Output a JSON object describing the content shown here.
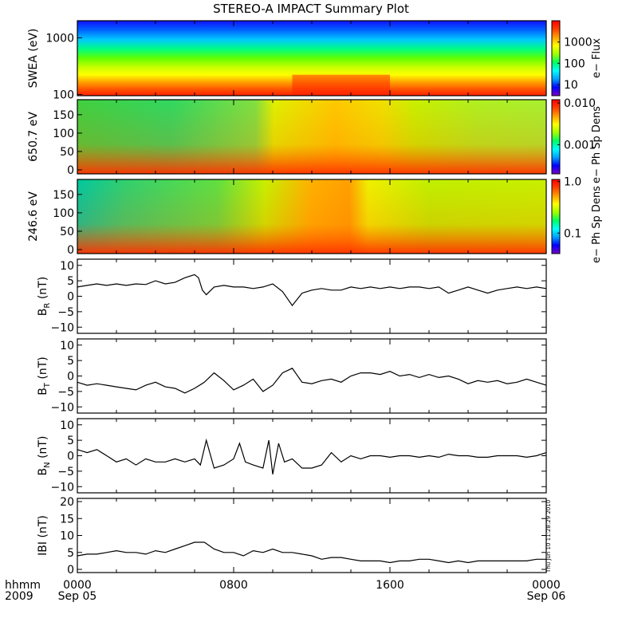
{
  "title": "STEREO-A IMPACT Summary Plot",
  "footer": {
    "left_label_1": "hhmm",
    "left_label_2": "2009",
    "stamp": "Thu Jun 10 11:28:29 2010"
  },
  "colors": {
    "line": "#000000",
    "frame": "#000000",
    "colorbar": [
      "#7a00c8",
      "#0000ff",
      "#00a0ff",
      "#00ffff",
      "#00ff60",
      "#a0ff00",
      "#ffff00",
      "#ffa000",
      "#ff4000",
      "#ff0000"
    ]
  },
  "chart_data": [
    {
      "type": "heatmap",
      "ylabel": "SWEA (eV)",
      "y_scale": "log",
      "ylim": [
        95,
        2000
      ],
      "yticks": [
        "1000",
        "100"
      ],
      "colorbar": {
        "label": "e− Flux",
        "scale": "log",
        "ticks": [
          "1000",
          "100",
          "10"
        ],
        "range": [
          3,
          10000
        ]
      },
      "description_values": {
        "x_range_hours": [
          0,
          24
        ]
      }
    },
    {
      "type": "heatmap",
      "ylabel": "650.7 eV",
      "ylim": [
        0,
        180
      ],
      "yticks": [
        "150",
        "100",
        "50",
        "0"
      ],
      "colorbar": {
        "label": "e− Ph Sp Dens",
        "scale": "log",
        "ticks": [
          "0.010",
          "0.001"
        ],
        "range": [
          0.0002,
          0.012
        ]
      }
    },
    {
      "type": "heatmap",
      "ylabel": "246.6 eV",
      "ylim": [
        0,
        180
      ],
      "yticks": [
        "150",
        "100",
        "50",
        "0"
      ],
      "colorbar": {
        "label": "e− Ph Sp Dens",
        "scale": "log",
        "ticks": [
          "1.0",
          "0.1"
        ],
        "range": [
          0.04,
          1.1
        ]
      }
    },
    {
      "type": "line",
      "ylabel_main": "B",
      "ylabel_sub": "R",
      "ylabel_unit": " (nT)",
      "ylim": [
        -12,
        12
      ],
      "yticks": [
        "10",
        "5",
        "0",
        "−5",
        "−10"
      ],
      "x": [
        0,
        0.5,
        1,
        1.5,
        2,
        2.5,
        3,
        3.5,
        4,
        4.5,
        5,
        5.5,
        6,
        6.2,
        6.4,
        6.6,
        7,
        7.5,
        8,
        8.5,
        9,
        9.5,
        10,
        10.5,
        11,
        11.5,
        12,
        12.5,
        13,
        13.5,
        14,
        14.5,
        15,
        15.5,
        16,
        16.5,
        17,
        17.5,
        18,
        18.5,
        19,
        19.5,
        20,
        20.5,
        21,
        21.5,
        22,
        22.5,
        23,
        23.5,
        24
      ],
      "y": [
        3,
        3.5,
        4,
        3.5,
        4,
        3.5,
        4,
        3.8,
        5,
        4,
        4.5,
        6,
        7,
        6,
        2,
        0.5,
        3,
        3.5,
        3,
        3,
        2.5,
        3,
        4,
        1.5,
        -3,
        1,
        2,
        2.5,
        2,
        2,
        3,
        2.5,
        3,
        2.5,
        3,
        2.5,
        3,
        3,
        2.5,
        3,
        1,
        2,
        3,
        2,
        1,
        2,
        2.5,
        3,
        2.5,
        3,
        2.5
      ]
    },
    {
      "type": "line",
      "ylabel_main": "B",
      "ylabel_sub": "T",
      "ylabel_unit": " (nT)",
      "ylim": [
        -12,
        12
      ],
      "yticks": [
        "10",
        "5",
        "0",
        "−5",
        "−10"
      ],
      "x": [
        0,
        0.5,
        1,
        1.5,
        2,
        2.5,
        3,
        3.5,
        4,
        4.5,
        5,
        5.5,
        6,
        6.5,
        7,
        7.5,
        8,
        8.5,
        9,
        9.5,
        10,
        10.5,
        11,
        11.5,
        12,
        12.5,
        13,
        13.5,
        14,
        14.5,
        15,
        15.5,
        16,
        16.5,
        17,
        17.5,
        18,
        18.5,
        19,
        19.5,
        20,
        20.5,
        21,
        21.5,
        22,
        22.5,
        23,
        23.5,
        24
      ],
      "y": [
        -2,
        -3,
        -2.5,
        -3,
        -3.5,
        -4,
        -4.5,
        -3,
        -2,
        -3.5,
        -4,
        -5.5,
        -4,
        -2,
        1,
        -1.5,
        -4.5,
        -3,
        -1,
        -5,
        -3,
        1,
        2.5,
        -2,
        -2.5,
        -1.5,
        -1,
        -2,
        0,
        1,
        1,
        0.5,
        1.5,
        0,
        0.5,
        -0.5,
        0.5,
        -0.5,
        0,
        -1,
        -2.5,
        -1.5,
        -2,
        -1.5,
        -2.5,
        -2,
        -1,
        -2,
        -3
      ]
    },
    {
      "type": "line",
      "ylabel_main": "B",
      "ylabel_sub": "N",
      "ylabel_unit": " (nT)",
      "ylim": [
        -12,
        12
      ],
      "yticks": [
        "10",
        "5",
        "0",
        "−5",
        "−10"
      ],
      "x": [
        0,
        0.5,
        1,
        1.5,
        2,
        2.5,
        3,
        3.5,
        4,
        4.5,
        5,
        5.5,
        6,
        6.3,
        6.6,
        7,
        7.5,
        8,
        8.3,
        8.6,
        9,
        9.5,
        9.8,
        10,
        10.3,
        10.6,
        11,
        11.5,
        12,
        12.5,
        13,
        13.5,
        14,
        14.5,
        15,
        15.5,
        16,
        16.5,
        17,
        17.5,
        18,
        18.5,
        19,
        19.5,
        20,
        20.5,
        21,
        21.5,
        22,
        22.5,
        23,
        23.5,
        24
      ],
      "y": [
        2,
        1,
        2,
        0,
        -2,
        -1,
        -3,
        -1,
        -2,
        -2,
        -1,
        -2,
        -1,
        -3,
        5,
        -4,
        -3,
        -1,
        4,
        -2,
        -3,
        -4,
        5,
        -6,
        4,
        -2,
        -1,
        -4,
        -4,
        -3,
        1,
        -2,
        0,
        -1,
        0,
        0,
        -0.5,
        0,
        0,
        -0.5,
        0,
        -0.5,
        0.5,
        0,
        0,
        -0.5,
        -0.5,
        0,
        0,
        0,
        -0.5,
        0,
        1
      ]
    },
    {
      "type": "line",
      "ylabel_main": "IBI",
      "ylabel_sub": "",
      "ylabel_unit": " (nT)",
      "ylim": [
        0,
        20
      ],
      "yticks": [
        "20",
        "15",
        "10",
        "5",
        "0"
      ],
      "x": [
        0,
        0.5,
        1,
        1.5,
        2,
        2.5,
        3,
        3.5,
        4,
        4.5,
        5,
        5.5,
        6,
        6.5,
        7,
        7.5,
        8,
        8.5,
        9,
        9.5,
        10,
        10.5,
        11,
        11.5,
        12,
        12.5,
        13,
        13.5,
        14,
        14.5,
        15,
        15.5,
        16,
        16.5,
        17,
        17.5,
        18,
        18.5,
        19,
        19.5,
        20,
        20.5,
        21,
        21.5,
        22,
        22.5,
        23,
        23.5,
        24
      ],
      "y": [
        4,
        4.5,
        4.5,
        5,
        5.5,
        5,
        5,
        4.5,
        5.5,
        5,
        6,
        7,
        8,
        8,
        6,
        5,
        5,
        4,
        5.5,
        5,
        6,
        5,
        5,
        4.5,
        4,
        3,
        3.5,
        3.5,
        3,
        2.5,
        2.5,
        2.5,
        2,
        2.5,
        2.5,
        3,
        3,
        2.5,
        2,
        2.5,
        2,
        2.5,
        2.5,
        2.5,
        2.5,
        2.5,
        2.5,
        3,
        3
      ]
    }
  ],
  "x_axis": {
    "ticks": [
      {
        "hour": 0,
        "line1": "0000",
        "line2": "Sep 05"
      },
      {
        "hour": 8,
        "line1": "0800",
        "line2": ""
      },
      {
        "hour": 16,
        "line1": "1600",
        "line2": ""
      },
      {
        "hour": 24,
        "line1": "0000",
        "line2": "Sep 06"
      }
    ],
    "range": [
      0,
      24
    ]
  }
}
